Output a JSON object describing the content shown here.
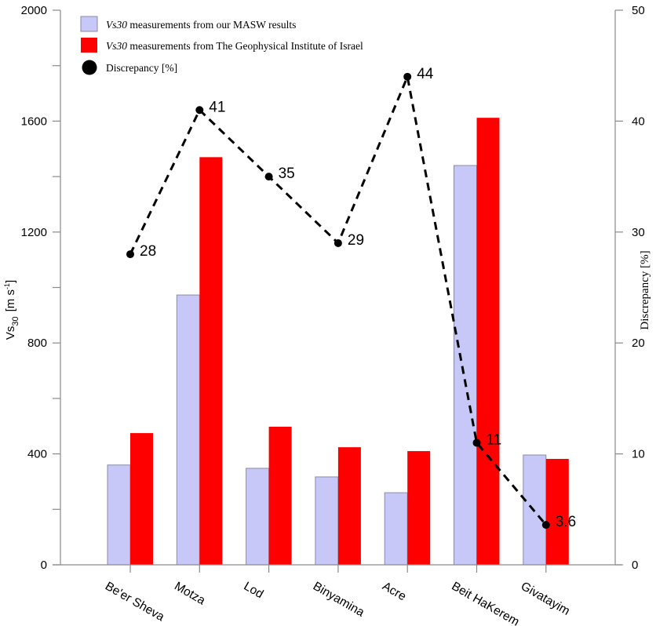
{
  "chart_data": {
    "type": "bar",
    "title": "",
    "xlabel": "",
    "ylabel_main": "Vs",
    "ylabel_sub": "30",
    "ylabel_units": "[m s",
    "ylabel_units_sup": "-1",
    "ylabel_units_close": "]",
    "ylabel_right": "Discrepancy [%]",
    "ylim": [
      0,
      2000
    ],
    "ylim_right": [
      0,
      50
    ],
    "yticks": [
      0,
      400,
      800,
      1200,
      1600,
      2000
    ],
    "yticks_minor": [
      200,
      600,
      1000,
      1400,
      1800
    ],
    "yticks_right": [
      0,
      10,
      20,
      30,
      40,
      50
    ],
    "grid": false,
    "legend_position": "top-left",
    "categories": [
      "Be'er Sheva",
      "Motza",
      "Lod",
      "Binyamina",
      "Acre",
      "Beit HaKerem",
      "Givatayim"
    ],
    "series": [
      {
        "name": "Vs30 measurements from our MASW results",
        "name_italic": "Vs30",
        "name_rest": " measurements from our MASW results",
        "type": "bar",
        "axis": "left",
        "color": "#c8c8f8",
        "values": [
          360,
          973,
          348,
          317,
          260,
          1440,
          396
        ]
      },
      {
        "name": "Vs30 measurements from The Geophysical Institute of Israel",
        "name_italic": "Vs30",
        "name_rest": " measurements from The Geophysical Institute of Israel",
        "type": "bar",
        "axis": "left",
        "color": "#ff0000",
        "values": [
          475,
          1470,
          498,
          424,
          410,
          1612,
          382
        ]
      },
      {
        "name": "Discrepancy [%]",
        "type": "line",
        "style": "dashed",
        "marker": "circle",
        "axis": "right",
        "color": "#000000",
        "values": [
          28,
          41,
          35,
          29,
          44,
          11,
          3.6
        ],
        "labels": [
          "28",
          "41",
          "35",
          "29",
          "44",
          "11",
          "3.6"
        ]
      }
    ]
  }
}
